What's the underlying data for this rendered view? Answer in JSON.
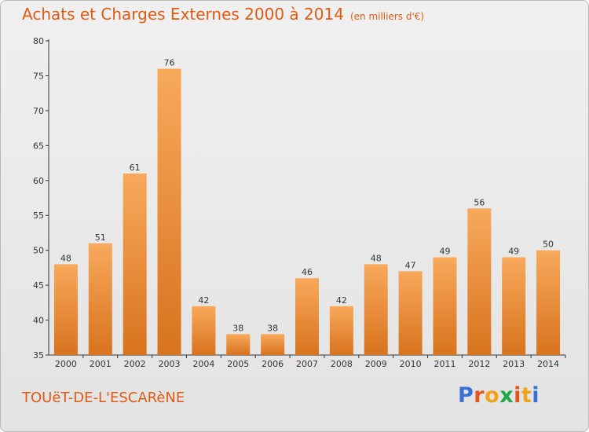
{
  "header": {
    "title": "Achats et Charges Externes 2000 à 2014",
    "unit": "(en milliers d'€)"
  },
  "footer": {
    "place": "TOUëT-DE-L'ESCARèNE",
    "brand": "Proxiti"
  },
  "colors": {
    "title": "#e05a12",
    "bar_light": "#f8a95c",
    "bar_dark": "#d8731e",
    "brand_letters": [
      "#3a6fd8",
      "#e8541c",
      "#f0a21a",
      "#22a84a",
      "#e8541c",
      "#f0a21a",
      "#3a6fd8"
    ]
  },
  "chart_data": {
    "type": "bar",
    "categories": [
      "2000",
      "2001",
      "2002",
      "2003",
      "2004",
      "2005",
      "2006",
      "2007",
      "2008",
      "2009",
      "2010",
      "2011",
      "2012",
      "2013",
      "2014"
    ],
    "values": [
      48,
      51,
      61,
      76,
      42,
      38,
      38,
      46,
      42,
      48,
      47,
      49,
      56,
      49,
      50
    ],
    "title": "Achats et Charges Externes 2000 à 2014",
    "ylim": [
      35,
      80
    ],
    "yticks": [
      35,
      40,
      45,
      50,
      55,
      60,
      65,
      70,
      75,
      80
    ],
    "grid": false,
    "data_labels": true
  }
}
